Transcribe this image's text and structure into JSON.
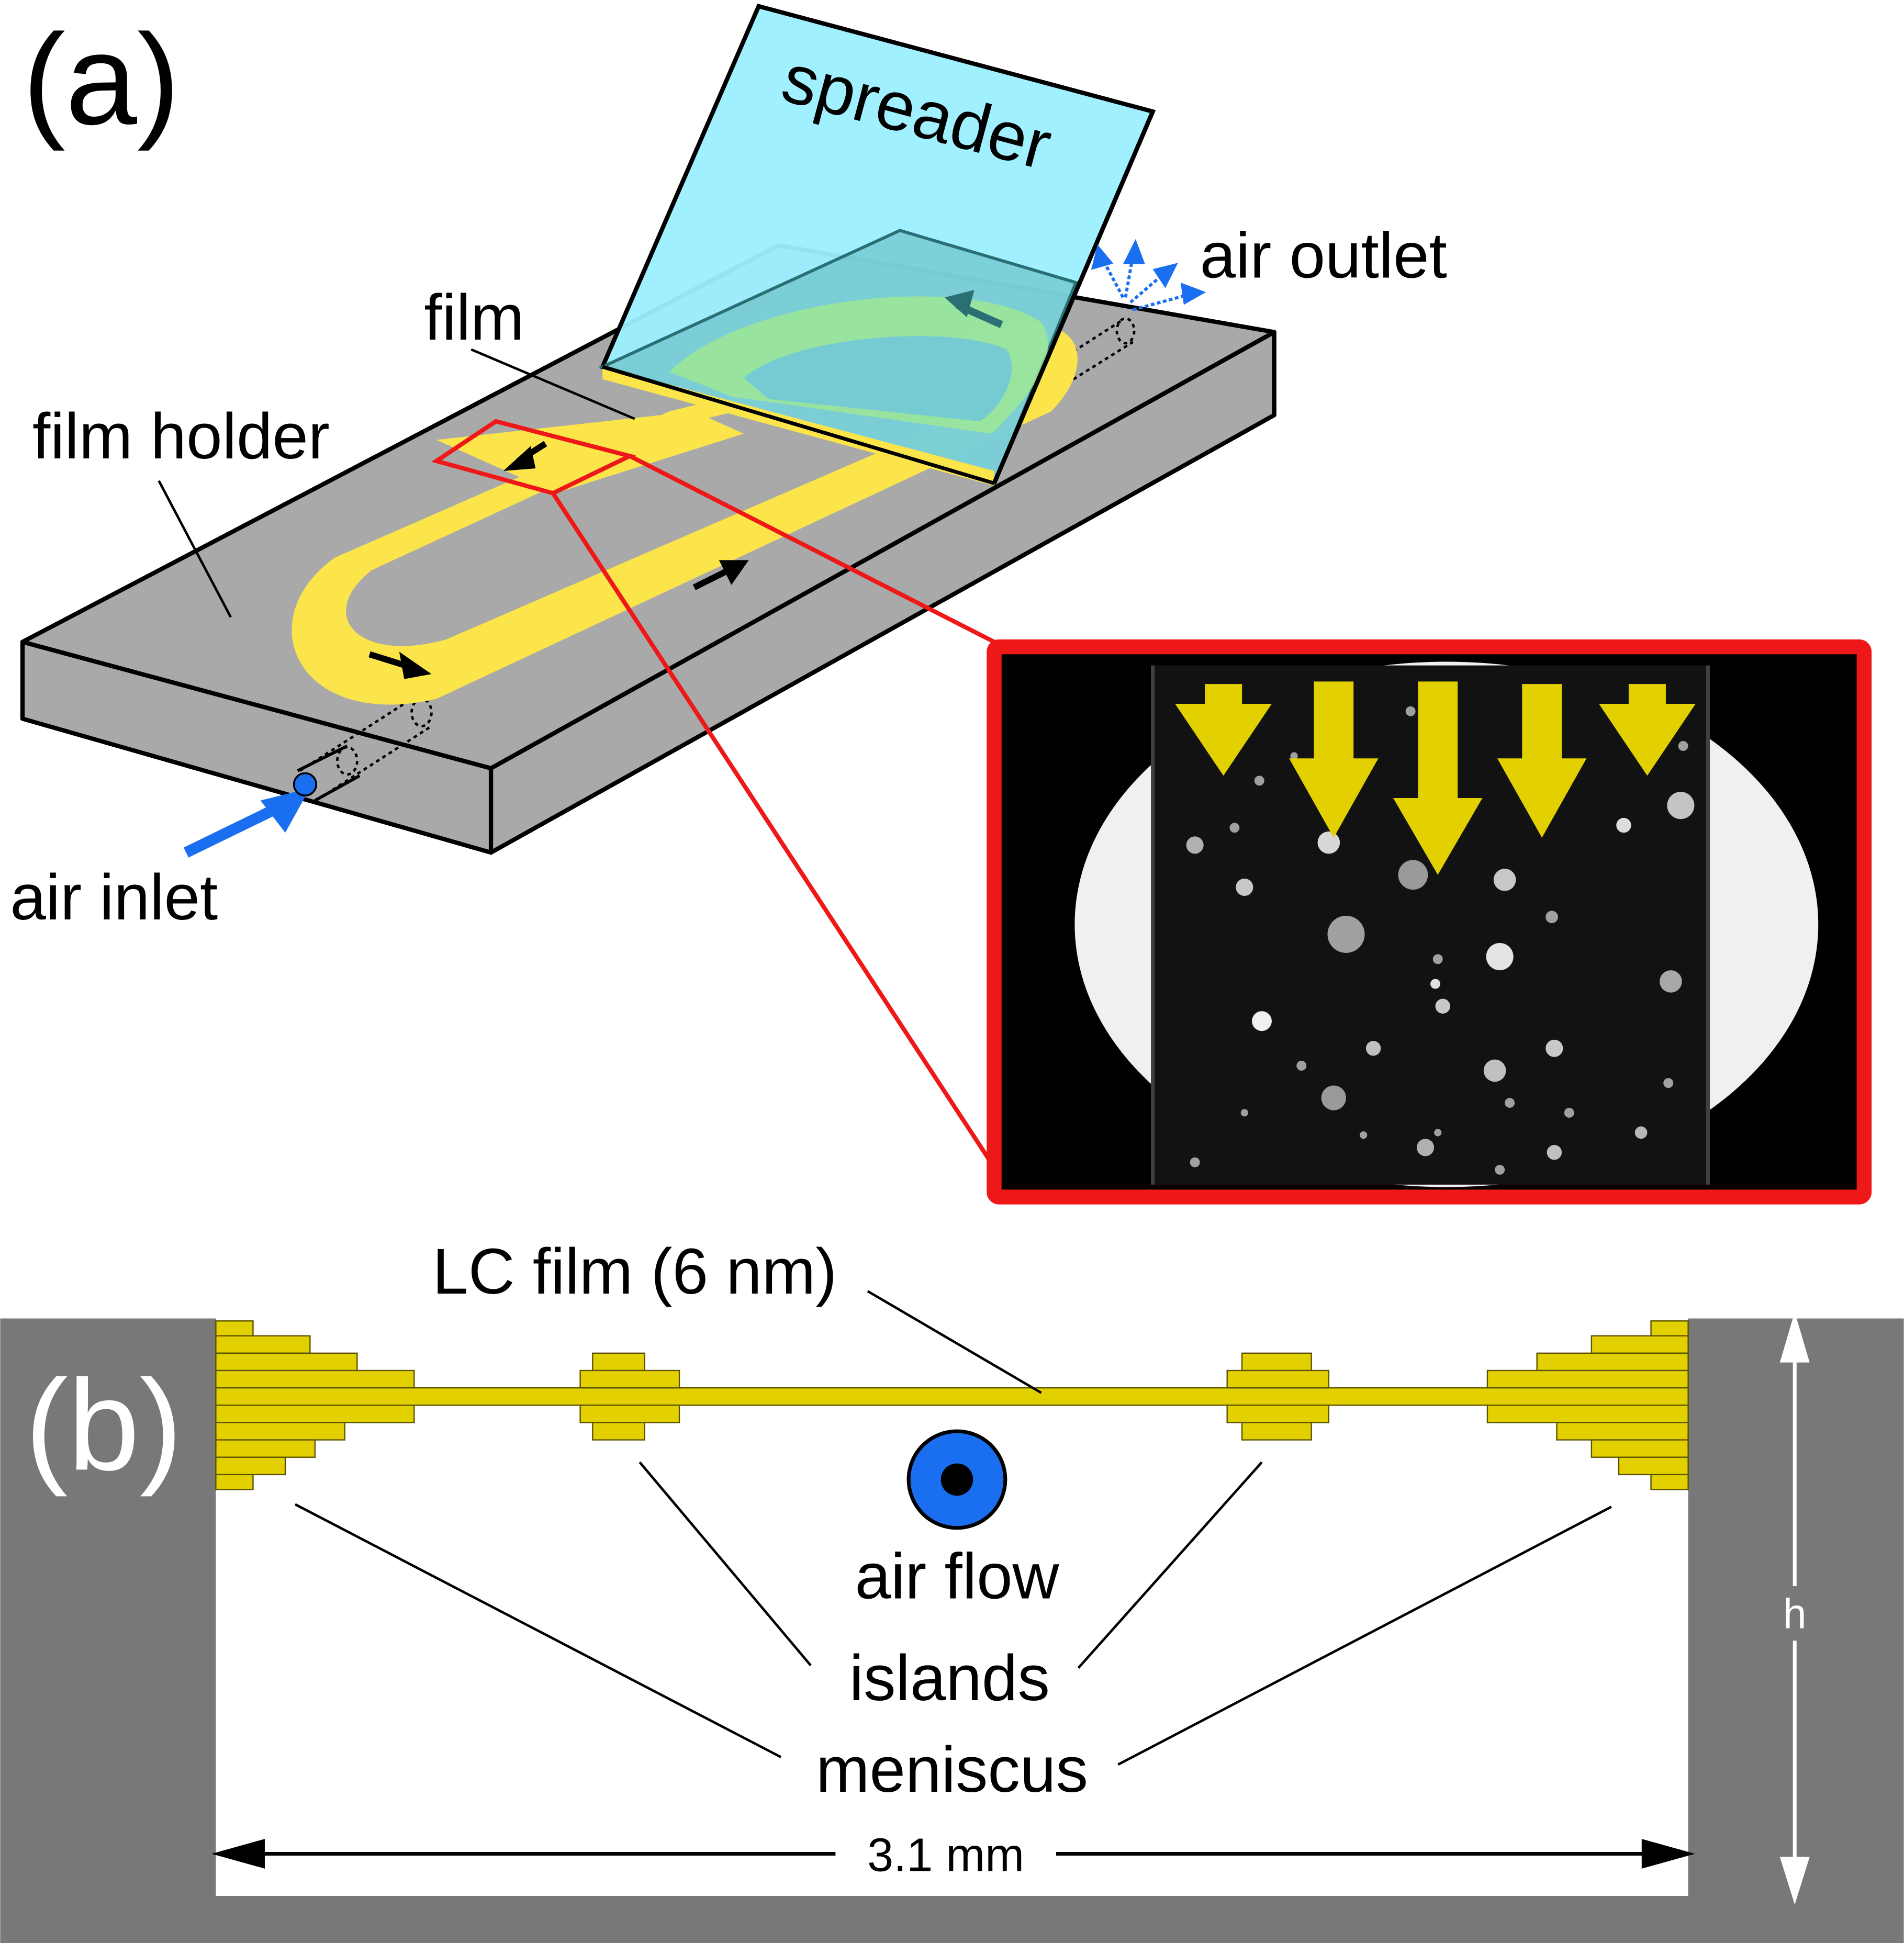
{
  "panel_a": {
    "letter": "(a)",
    "spreader": "spreader",
    "air_outlet": "air outlet",
    "film": "film",
    "film_holder": "film holder",
    "air_inlet": "air inlet"
  },
  "panel_b": {
    "letter": "(b)",
    "lc_film": "LC film (6 nm)",
    "air_flow": "air flow",
    "islands": "islands",
    "meniscus": "meniscus",
    "width": "3.1 mm",
    "height": "h"
  },
  "colors": {
    "holder_gray": "#a9a9a9",
    "film_yellow": "#fbe54a",
    "spreader_cyan": "#9cefff",
    "inset_red": "#ef1818",
    "arrow_blue": "#1a6ef0",
    "arrow_yellow": "#e3d000"
  }
}
